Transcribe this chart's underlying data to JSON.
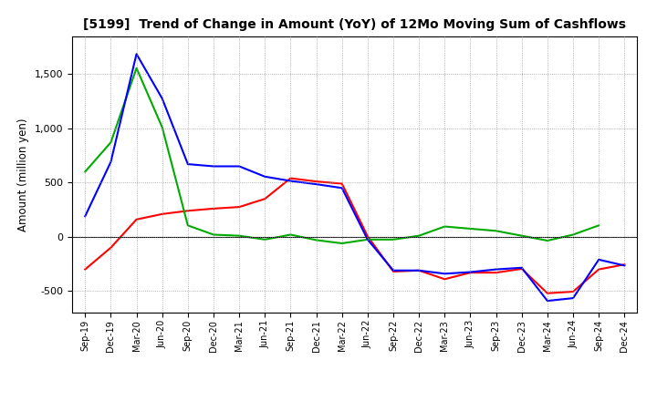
{
  "title": "[5199]  Trend of Change in Amount (YoY) of 12Mo Moving Sum of Cashflows",
  "ylabel": "Amount (million yen)",
  "xlabels": [
    "Sep-19",
    "Dec-19",
    "Mar-20",
    "Jun-20",
    "Sep-20",
    "Dec-20",
    "Mar-21",
    "Jun-21",
    "Sep-21",
    "Dec-21",
    "Mar-22",
    "Jun-22",
    "Sep-22",
    "Dec-22",
    "Mar-23",
    "Jun-23",
    "Sep-23",
    "Dec-23",
    "Mar-24",
    "Jun-24",
    "Sep-24",
    "Dec-24"
  ],
  "operating": [
    -300,
    -100,
    160,
    210,
    240,
    260,
    275,
    350,
    540,
    510,
    490,
    5,
    -320,
    -310,
    -390,
    -330,
    -330,
    -295,
    -520,
    -505,
    -300,
    -255
  ],
  "investing": [
    600,
    870,
    1555,
    1010,
    105,
    20,
    10,
    -25,
    20,
    -30,
    -60,
    -25,
    -25,
    10,
    95,
    75,
    55,
    10,
    -35,
    20,
    105,
    null
  ],
  "free": [
    190,
    690,
    1685,
    1275,
    670,
    650,
    650,
    555,
    515,
    485,
    450,
    -25,
    -310,
    -310,
    -340,
    -325,
    -300,
    -285,
    -590,
    -565,
    -210,
    -265
  ],
  "ylim": [
    -700,
    1850
  ],
  "yticks": [
    -500,
    0,
    500,
    1000,
    1500
  ],
  "colors": {
    "operating": "#ff0000",
    "investing": "#00aa00",
    "free": "#0000ff"
  },
  "bg_color": "#ffffff",
  "grid_color": "#aaaaaa"
}
